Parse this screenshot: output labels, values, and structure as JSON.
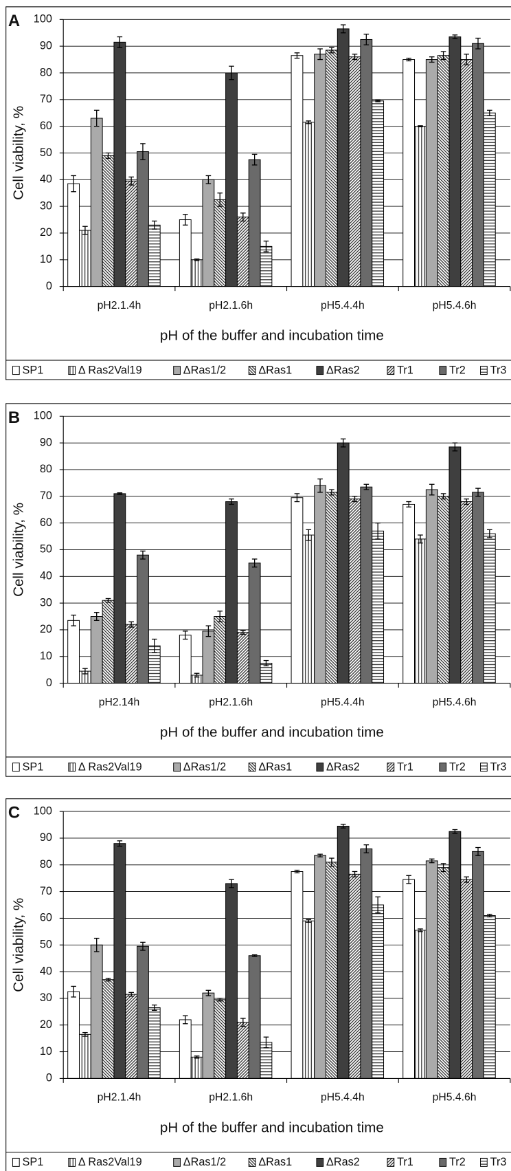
{
  "chart_data": [
    {
      "type": "bar",
      "panel": "A",
      "ylabel": "Cell viability, %",
      "xlabel": "pH of the buffer and incubation time",
      "categories": [
        "pH2.1.4h",
        "pH2.1.6h",
        "pH5.4.4h",
        "pH5.4.6h"
      ],
      "ylim": [
        0,
        100
      ],
      "yticks": [
        0,
        10,
        20,
        30,
        40,
        50,
        60,
        70,
        80,
        90,
        100
      ],
      "grid": true,
      "series": [
        {
          "name": "SP1",
          "color": "#ffffff",
          "pattern": "none",
          "values": [
            38.5,
            25,
            86.5,
            85
          ],
          "errors": [
            3,
            2,
            1,
            0.5
          ]
        },
        {
          "name": "Δ Ras2Val19",
          "color": "#222222",
          "pattern": "vertical",
          "values": [
            21,
            10,
            61.5,
            60
          ],
          "errors": [
            1.5,
            0.3,
            0.5,
            0.2
          ]
        },
        {
          "name": "ΔRas1/2",
          "color": "#aaaaaa",
          "pattern": "none",
          "values": [
            63,
            40,
            87,
            85
          ],
          "errors": [
            3,
            1.5,
            2,
            1
          ]
        },
        {
          "name": "ΔRas1",
          "color": "#222222",
          "pattern": "backslash",
          "values": [
            49,
            32.5,
            88.5,
            86.5
          ],
          "errors": [
            1,
            2.5,
            1,
            1.5
          ]
        },
        {
          "name": "ΔRas2",
          "color": "#3f3f3f",
          "pattern": "none",
          "values": [
            91.5,
            80,
            96.5,
            93.5
          ],
          "errors": [
            2,
            2.5,
            1.5,
            0.7
          ]
        },
        {
          "name": "Tr1",
          "color": "#222222",
          "pattern": "slash",
          "values": [
            39.5,
            26,
            86,
            85
          ],
          "errors": [
            1.5,
            1.5,
            1,
            2
          ]
        },
        {
          "name": "Tr2",
          "color": "#6a6a6a",
          "pattern": "none",
          "values": [
            50.5,
            47.5,
            92.5,
            91
          ],
          "errors": [
            3,
            2,
            2,
            2
          ]
        },
        {
          "name": "Tr3",
          "color": "#222222",
          "pattern": "horizontal",
          "values": [
            23,
            15,
            69.5,
            65
          ],
          "errors": [
            1.5,
            2,
            0.3,
            1
          ]
        }
      ]
    },
    {
      "type": "bar",
      "panel": "B",
      "ylabel": "Cell viability, %",
      "xlabel": "pH of the buffer and incubation time",
      "categories": [
        "pH2.14h",
        "pH2.1.6h",
        "pH5.4.4h",
        "pH5.4.6h"
      ],
      "ylim": [
        0,
        100
      ],
      "yticks": [
        0,
        10,
        20,
        30,
        40,
        50,
        60,
        70,
        80,
        90,
        100
      ],
      "grid": true,
      "series": [
        {
          "name": "SP1",
          "color": "#ffffff",
          "pattern": "none",
          "values": [
            23.5,
            18,
            69.5,
            67
          ],
          "errors": [
            2,
            1.5,
            1.5,
            1
          ]
        },
        {
          "name": "Δ Ras2Val19",
          "color": "#222222",
          "pattern": "vertical",
          "values": [
            4.5,
            3,
            55.5,
            54
          ],
          "errors": [
            1,
            0.7,
            2,
            1.5
          ]
        },
        {
          "name": "ΔRas1/2",
          "color": "#aaaaaa",
          "pattern": "none",
          "values": [
            25,
            19.5,
            74,
            72.5
          ],
          "errors": [
            1.5,
            2,
            2.5,
            2
          ]
        },
        {
          "name": "ΔRas1",
          "color": "#222222",
          "pattern": "backslash",
          "values": [
            31,
            25,
            71.5,
            70
          ],
          "errors": [
            0.7,
            2,
            1,
            1
          ]
        },
        {
          "name": "ΔRas2",
          "color": "#3f3f3f",
          "pattern": "none",
          "values": [
            71,
            68,
            90,
            88.5
          ],
          "errors": [
            0.3,
            1,
            1.5,
            1.5
          ]
        },
        {
          "name": "Tr1",
          "color": "#222222",
          "pattern": "slash",
          "values": [
            22,
            19,
            69,
            68
          ],
          "errors": [
            1,
            0.7,
            1,
            1
          ]
        },
        {
          "name": "Tr2",
          "color": "#6a6a6a",
          "pattern": "none",
          "values": [
            48,
            45,
            73.5,
            71.5
          ],
          "errors": [
            1.5,
            1.5,
            1,
            1.5
          ]
        },
        {
          "name": "Tr3",
          "color": "#222222",
          "pattern": "horizontal",
          "values": [
            14,
            7.5,
            57,
            56
          ],
          "errors": [
            2.5,
            1,
            3,
            1.5
          ]
        }
      ]
    },
    {
      "type": "bar",
      "panel": "C",
      "ylabel": "Cell viability, %",
      "xlabel": "pH of the buffer and incubation time",
      "categories": [
        "pH2.1.4h",
        "pH2.1.6h",
        "pH5.4.4h",
        "pH5.4.6h"
      ],
      "ylim": [
        0,
        100
      ],
      "yticks": [
        0,
        10,
        20,
        30,
        40,
        50,
        60,
        70,
        80,
        90,
        100
      ],
      "grid": true,
      "series": [
        {
          "name": "SP1",
          "color": "#ffffff",
          "pattern": "none",
          "values": [
            32.5,
            22,
            77.5,
            74.5
          ],
          "errors": [
            2,
            1.5,
            0.5,
            1.5
          ]
        },
        {
          "name": "Δ Ras2Val19",
          "color": "#222222",
          "pattern": "vertical",
          "values": [
            16.5,
            8,
            59,
            55.5
          ],
          "errors": [
            0.7,
            0.4,
            0.5,
            0.5
          ]
        },
        {
          "name": "ΔRas1/2",
          "color": "#aaaaaa",
          "pattern": "none",
          "values": [
            50,
            32,
            83.5,
            81.5
          ],
          "errors": [
            2.5,
            1,
            0.5,
            0.7
          ]
        },
        {
          "name": "ΔRas1",
          "color": "#222222",
          "pattern": "backslash",
          "values": [
            37,
            29.5,
            81,
            79
          ],
          "errors": [
            0.5,
            0.5,
            1.5,
            1.5
          ]
        },
        {
          "name": "ΔRas2",
          "color": "#3f3f3f",
          "pattern": "none",
          "values": [
            88,
            73,
            94.5,
            92.5
          ],
          "errors": [
            1,
            1.5,
            0.7,
            0.7
          ]
        },
        {
          "name": "Tr1",
          "color": "#222222",
          "pattern": "slash",
          "values": [
            31.5,
            21,
            76.5,
            74.5
          ],
          "errors": [
            0.7,
            1.5,
            1,
            1
          ]
        },
        {
          "name": "Tr2",
          "color": "#6a6a6a",
          "pattern": "none",
          "values": [
            49.5,
            46,
            86,
            85
          ],
          "errors": [
            1.5,
            0.3,
            1.5,
            1.5
          ]
        },
        {
          "name": "Tr3",
          "color": "#222222",
          "pattern": "horizontal",
          "values": [
            26.5,
            13.5,
            65,
            61
          ],
          "errors": [
            1,
            2,
            3,
            0.5
          ]
        }
      ]
    }
  ]
}
